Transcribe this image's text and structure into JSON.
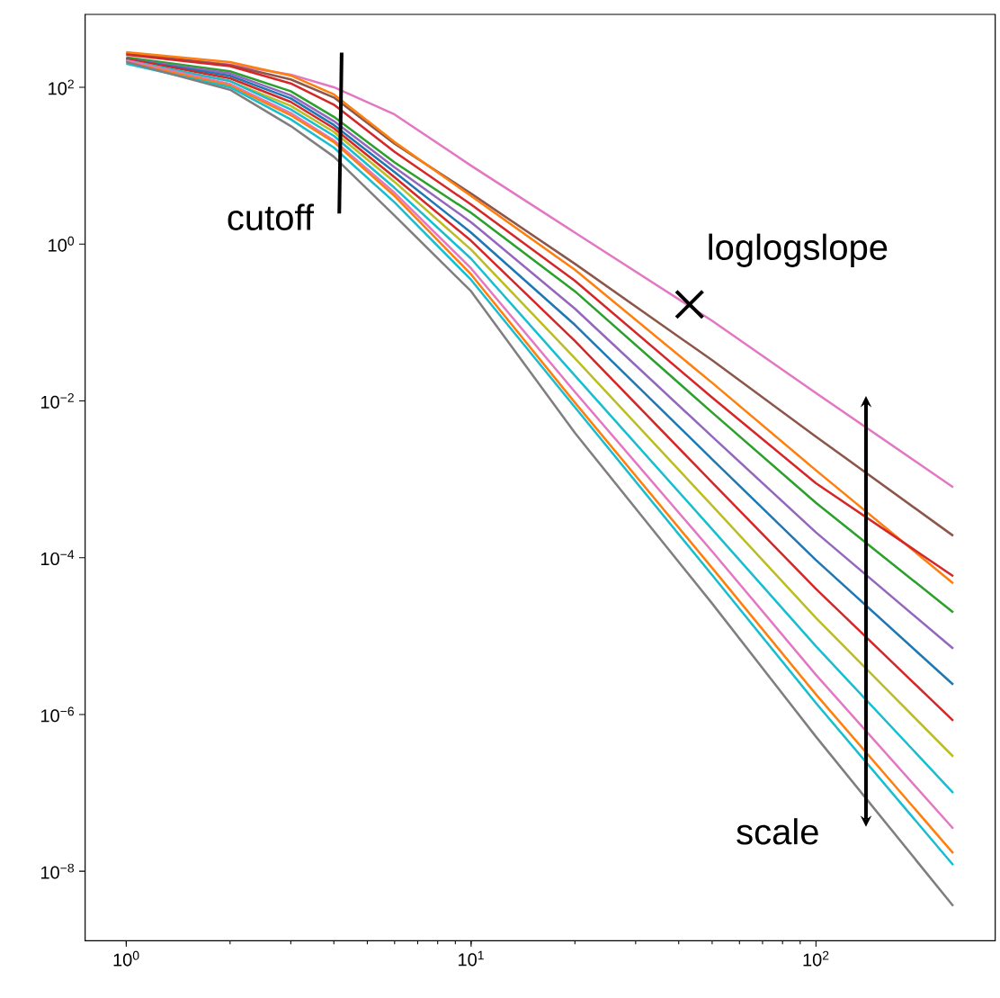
{
  "chart_data": {
    "type": "line",
    "log": "xy",
    "x": [
      1,
      2,
      3,
      4,
      6,
      10,
      20,
      50,
      100,
      250
    ],
    "series": [
      {
        "color": "#e377c2",
        "values": [
          275,
          195,
          145,
          100,
          45,
          10,
          1.4,
          0.105,
          0.0126,
          0.00079
        ]
      },
      {
        "color": "#8c564b",
        "values": [
          270,
          191,
          126,
          74,
          19,
          4.4,
          0.56,
          0.033,
          0.0035,
          0.00019
        ]
      },
      {
        "color": "#ff7f0e",
        "values": [
          280,
          210,
          141,
          81,
          20,
          4.1,
          0.47,
          0.017,
          0.0013,
          4.7e-05
        ]
      },
      {
        "color": "#d62728",
        "values": [
          260,
          186,
          112,
          60,
          15,
          3.2,
          0.34,
          0.011,
          0.00089,
          5.8e-05
        ]
      },
      {
        "color": "#2ca02c",
        "values": [
          240,
          160,
          89,
          42,
          11,
          2.5,
          0.25,
          0.0071,
          0.0005,
          2e-05
        ]
      },
      {
        "color": "#9467bd",
        "values": [
          230,
          150,
          79,
          37,
          9.5,
          1.9,
          0.15,
          0.0035,
          0.00021,
          6.9e-06
        ]
      },
      {
        "color": "#1f77b4",
        "values": [
          230,
          140,
          72,
          33,
          8.3,
          1.4,
          0.093,
          0.0018,
          9.3e-05,
          2.4e-06
        ]
      },
      {
        "color": "#d62728",
        "values": [
          230,
          130,
          65,
          30,
          7.1,
          1.1,
          0.058,
          0.00091,
          4e-05,
          8.3e-07
        ]
      },
      {
        "color": "#bcbd22",
        "values": [
          220,
          120,
          58,
          27,
          6.2,
          0.85,
          0.035,
          0.00046,
          1.7e-05,
          2.9e-07
        ]
      },
      {
        "color": "#17becf",
        "values": [
          220,
          120,
          52,
          24,
          5.2,
          0.65,
          0.021,
          0.00023,
          7.4e-06,
          1e-07
        ]
      },
      {
        "color": "#e377c2",
        "values": [
          220,
          110,
          47,
          21,
          4.5,
          0.49,
          0.013,
          0.00012,
          3.2e-06,
          3.5e-08
        ]
      },
      {
        "color": "#ff7f0e",
        "values": [
          210,
          105,
          44,
          20,
          4.1,
          0.41,
          0.0095,
          7.4e-05,
          1.8e-06,
          1.7e-08
        ]
      },
      {
        "color": "#17becf",
        "values": [
          200,
          100,
          39,
          17,
          3.4,
          0.35,
          0.0083,
          6e-05,
          1.4e-06,
          1.2e-08
        ]
      },
      {
        "color": "#7f7f7f",
        "values": [
          210,
          93,
          32,
          13,
          2.3,
          0.25,
          0.0039,
          2.6e-05,
          5.2e-07,
          3.6e-09
        ]
      }
    ],
    "xlim": [
      0.76,
      331
    ],
    "ylim": [
      1.3e-09,
      850
    ],
    "xticks": [
      {
        "value": 1,
        "label": "10$^{0}$"
      },
      {
        "value": 10,
        "label": "10$^{1}$"
      },
      {
        "value": 100,
        "label": "10$^{2}$"
      }
    ],
    "yticks": [
      {
        "value": 1e-08,
        "label": "10$^{−8}$"
      },
      {
        "value": 1e-06,
        "label": "10$^{−6}$"
      },
      {
        "value": 0.0001,
        "label": "10$^{−4}$"
      },
      {
        "value": 0.01,
        "label": "10$^{−2}$"
      },
      {
        "value": 1,
        "label": "10$^{0}$"
      },
      {
        "value": 100,
        "label": "10$^{2}$"
      }
    ],
    "annotations": [
      {
        "text": "cutoff",
        "x": 4.18,
        "y": 26
      },
      {
        "text": "loglogslope",
        "x": 43,
        "y": 0.17
      },
      "scale"
    ]
  }
}
